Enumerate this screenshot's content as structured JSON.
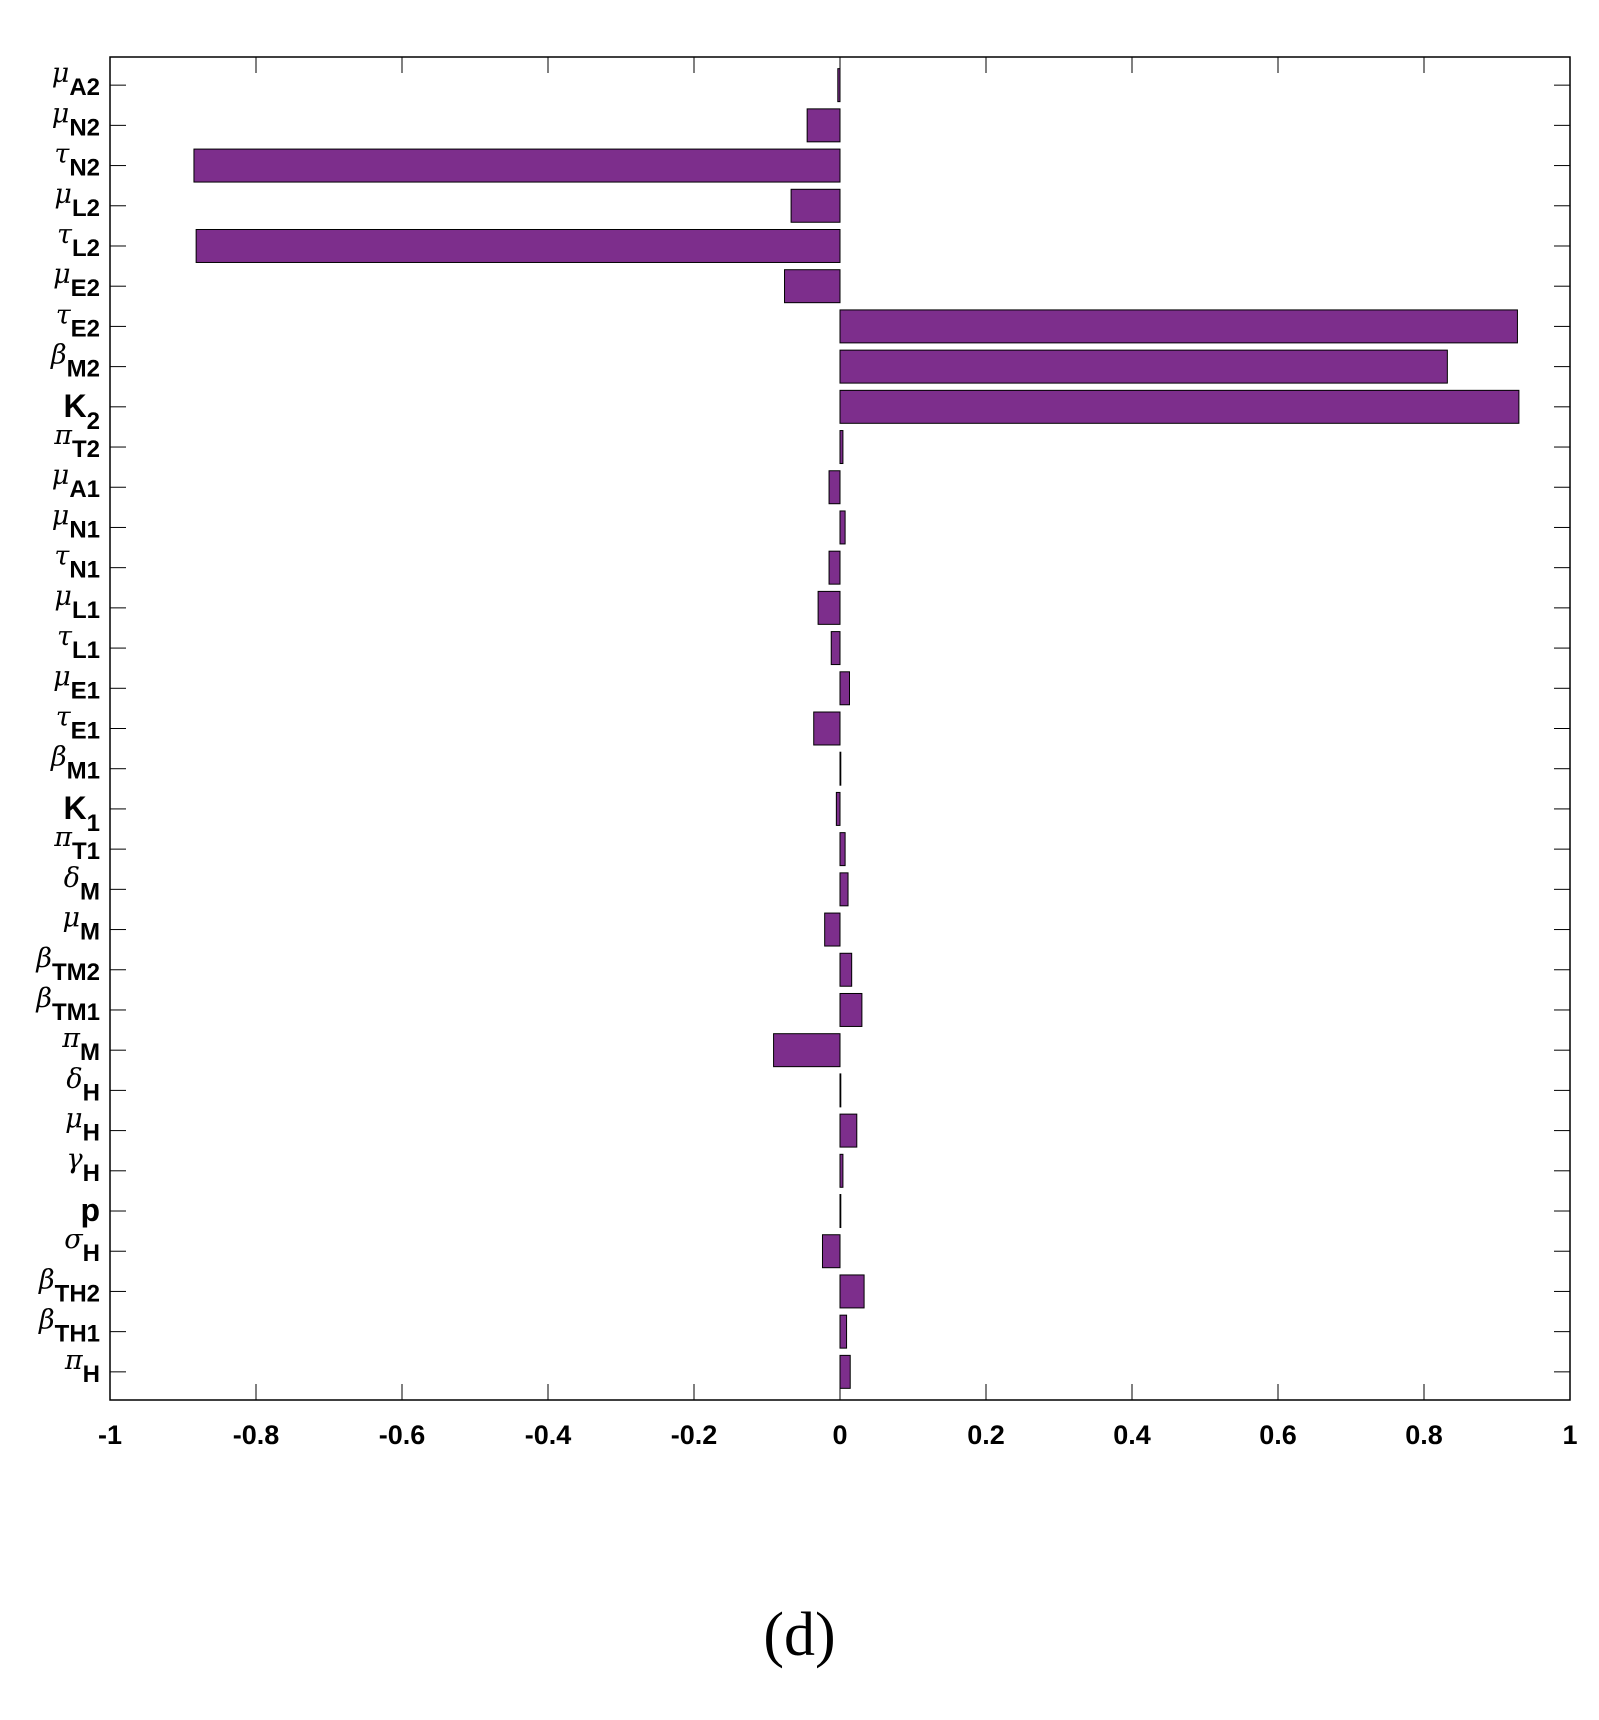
{
  "caption": "(d)",
  "colors": {
    "bar_fill": "#7d2e8c",
    "bar_stroke": "#000000",
    "axis": "#000000"
  },
  "chart_data": {
    "type": "bar",
    "orientation": "horizontal",
    "xlim": [
      -1,
      1
    ],
    "xticks": [
      "-1",
      "-0.8",
      "-0.6",
      "-0.4",
      "-0.2",
      "0",
      "0.2",
      "0.4",
      "0.6",
      "0.8",
      "1"
    ],
    "grid": false,
    "categories": [
      {
        "sym": "μ",
        "sub": "A2",
        "main": "",
        "value": -0.003
      },
      {
        "sym": "μ",
        "sub": "N2",
        "main": "",
        "value": -0.045
      },
      {
        "sym": "τ",
        "sub": "N2",
        "main": "",
        "value": -0.885
      },
      {
        "sym": "μ",
        "sub": "L2",
        "main": "",
        "value": -0.067
      },
      {
        "sym": "τ",
        "sub": "L2",
        "main": "",
        "value": -0.882
      },
      {
        "sym": "μ",
        "sub": "E2",
        "main": "",
        "value": -0.076
      },
      {
        "sym": "τ",
        "sub": "E2",
        "main": "",
        "value": 0.928
      },
      {
        "sym": "β",
        "sub": "M2",
        "main": "",
        "value": 0.832
      },
      {
        "sym": "",
        "sub": "2",
        "main": "K",
        "value": 0.93
      },
      {
        "sym": "π",
        "sub": "T2",
        "main": "",
        "value": 0.004
      },
      {
        "sym": "μ",
        "sub": "A1",
        "main": "",
        "value": -0.015
      },
      {
        "sym": "μ",
        "sub": "N1",
        "main": "",
        "value": 0.007
      },
      {
        "sym": "τ",
        "sub": "N1",
        "main": "",
        "value": -0.015
      },
      {
        "sym": "μ",
        "sub": "L1",
        "main": "",
        "value": -0.03
      },
      {
        "sym": "τ",
        "sub": "L1",
        "main": "",
        "value": -0.012
      },
      {
        "sym": "μ",
        "sub": "E1",
        "main": "",
        "value": 0.013
      },
      {
        "sym": "τ",
        "sub": "E1",
        "main": "",
        "value": -0.036
      },
      {
        "sym": "β",
        "sub": "M1",
        "main": "",
        "value": 0.0
      },
      {
        "sym": "",
        "sub": "1",
        "main": "K",
        "value": -0.005
      },
      {
        "sym": "π",
        "sub": "T1",
        "main": "",
        "value": 0.007
      },
      {
        "sym": "δ",
        "sub": "M",
        "main": "",
        "value": 0.011
      },
      {
        "sym": "μ",
        "sub": "M",
        "main": "",
        "value": -0.021
      },
      {
        "sym": "β",
        "sub": "TM2",
        "main": "",
        "value": 0.016
      },
      {
        "sym": "β",
        "sub": "TM1",
        "main": "",
        "value": 0.03
      },
      {
        "sym": "π",
        "sub": "M",
        "main": "",
        "value": -0.091
      },
      {
        "sym": "δ",
        "sub": "H",
        "main": "",
        "value": 0.0
      },
      {
        "sym": "μ",
        "sub": "H",
        "main": "",
        "value": 0.023
      },
      {
        "sym": "γ",
        "sub": "H",
        "main": "",
        "value": 0.004
      },
      {
        "sym": "",
        "sub": "",
        "main": "p",
        "value": 0.001
      },
      {
        "sym": "σ",
        "sub": "H",
        "main": "",
        "value": -0.024
      },
      {
        "sym": "β",
        "sub": "TH2",
        "main": "",
        "value": 0.033
      },
      {
        "sym": "β",
        "sub": "TH1",
        "main": "",
        "value": 0.009
      },
      {
        "sym": "π",
        "sub": "H",
        "main": "",
        "value": 0.014
      }
    ]
  }
}
